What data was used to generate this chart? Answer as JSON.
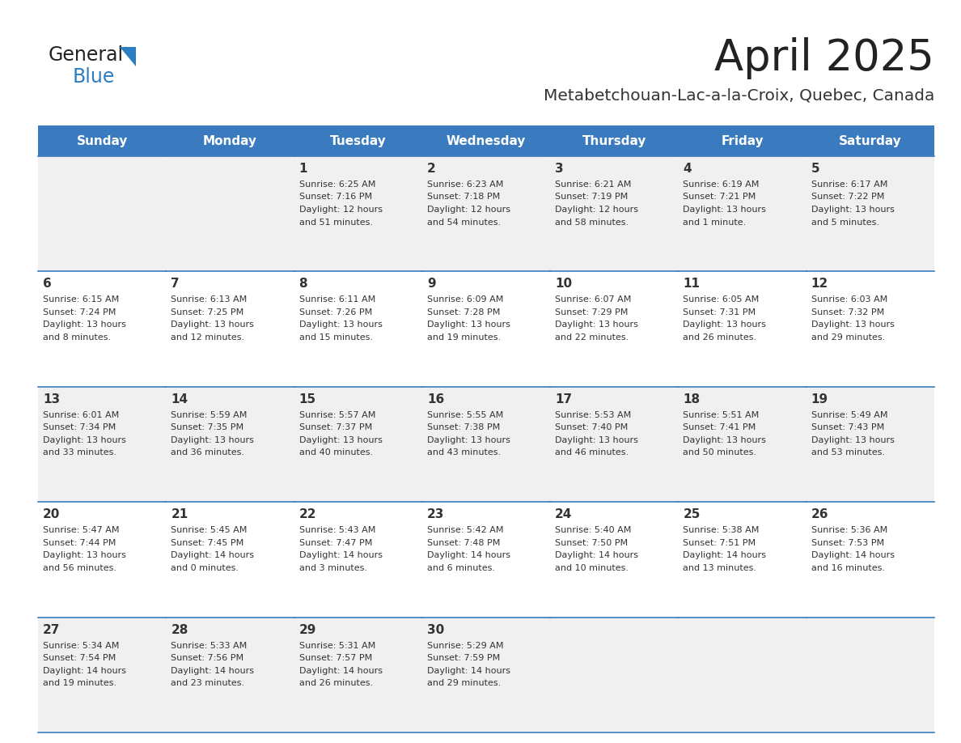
{
  "title": "April 2025",
  "subtitle": "Metabetchouan-Lac-a-la-Croix, Quebec, Canada",
  "header_color": "#3a7bbf",
  "header_text_color": "#ffffff",
  "cell_bg_even": "#f0f0f0",
  "cell_bg_odd": "#ffffff",
  "day_headers": [
    "Sunday",
    "Monday",
    "Tuesday",
    "Wednesday",
    "Thursday",
    "Friday",
    "Saturday"
  ],
  "title_color": "#222222",
  "subtitle_color": "#333333",
  "divider_color": "#3a7bbf",
  "cell_text_color": "#333333",
  "logo_black": "#222222",
  "logo_blue": "#2e7fc2",
  "days": [
    {
      "date": "",
      "sunrise": "",
      "sunset": "",
      "daylight": ""
    },
    {
      "date": "",
      "sunrise": "",
      "sunset": "",
      "daylight": ""
    },
    {
      "date": "1",
      "sunrise": "Sunrise: 6:25 AM",
      "sunset": "Sunset: 7:16 PM",
      "daylight": "Daylight: 12 hours\nand 51 minutes."
    },
    {
      "date": "2",
      "sunrise": "Sunrise: 6:23 AM",
      "sunset": "Sunset: 7:18 PM",
      "daylight": "Daylight: 12 hours\nand 54 minutes."
    },
    {
      "date": "3",
      "sunrise": "Sunrise: 6:21 AM",
      "sunset": "Sunset: 7:19 PM",
      "daylight": "Daylight: 12 hours\nand 58 minutes."
    },
    {
      "date": "4",
      "sunrise": "Sunrise: 6:19 AM",
      "sunset": "Sunset: 7:21 PM",
      "daylight": "Daylight: 13 hours\nand 1 minute."
    },
    {
      "date": "5",
      "sunrise": "Sunrise: 6:17 AM",
      "sunset": "Sunset: 7:22 PM",
      "daylight": "Daylight: 13 hours\nand 5 minutes."
    },
    {
      "date": "6",
      "sunrise": "Sunrise: 6:15 AM",
      "sunset": "Sunset: 7:24 PM",
      "daylight": "Daylight: 13 hours\nand 8 minutes."
    },
    {
      "date": "7",
      "sunrise": "Sunrise: 6:13 AM",
      "sunset": "Sunset: 7:25 PM",
      "daylight": "Daylight: 13 hours\nand 12 minutes."
    },
    {
      "date": "8",
      "sunrise": "Sunrise: 6:11 AM",
      "sunset": "Sunset: 7:26 PM",
      "daylight": "Daylight: 13 hours\nand 15 minutes."
    },
    {
      "date": "9",
      "sunrise": "Sunrise: 6:09 AM",
      "sunset": "Sunset: 7:28 PM",
      "daylight": "Daylight: 13 hours\nand 19 minutes."
    },
    {
      "date": "10",
      "sunrise": "Sunrise: 6:07 AM",
      "sunset": "Sunset: 7:29 PM",
      "daylight": "Daylight: 13 hours\nand 22 minutes."
    },
    {
      "date": "11",
      "sunrise": "Sunrise: 6:05 AM",
      "sunset": "Sunset: 7:31 PM",
      "daylight": "Daylight: 13 hours\nand 26 minutes."
    },
    {
      "date": "12",
      "sunrise": "Sunrise: 6:03 AM",
      "sunset": "Sunset: 7:32 PM",
      "daylight": "Daylight: 13 hours\nand 29 minutes."
    },
    {
      "date": "13",
      "sunrise": "Sunrise: 6:01 AM",
      "sunset": "Sunset: 7:34 PM",
      "daylight": "Daylight: 13 hours\nand 33 minutes."
    },
    {
      "date": "14",
      "sunrise": "Sunrise: 5:59 AM",
      "sunset": "Sunset: 7:35 PM",
      "daylight": "Daylight: 13 hours\nand 36 minutes."
    },
    {
      "date": "15",
      "sunrise": "Sunrise: 5:57 AM",
      "sunset": "Sunset: 7:37 PM",
      "daylight": "Daylight: 13 hours\nand 40 minutes."
    },
    {
      "date": "16",
      "sunrise": "Sunrise: 5:55 AM",
      "sunset": "Sunset: 7:38 PM",
      "daylight": "Daylight: 13 hours\nand 43 minutes."
    },
    {
      "date": "17",
      "sunrise": "Sunrise: 5:53 AM",
      "sunset": "Sunset: 7:40 PM",
      "daylight": "Daylight: 13 hours\nand 46 minutes."
    },
    {
      "date": "18",
      "sunrise": "Sunrise: 5:51 AM",
      "sunset": "Sunset: 7:41 PM",
      "daylight": "Daylight: 13 hours\nand 50 minutes."
    },
    {
      "date": "19",
      "sunrise": "Sunrise: 5:49 AM",
      "sunset": "Sunset: 7:43 PM",
      "daylight": "Daylight: 13 hours\nand 53 minutes."
    },
    {
      "date": "20",
      "sunrise": "Sunrise: 5:47 AM",
      "sunset": "Sunset: 7:44 PM",
      "daylight": "Daylight: 13 hours\nand 56 minutes."
    },
    {
      "date": "21",
      "sunrise": "Sunrise: 5:45 AM",
      "sunset": "Sunset: 7:45 PM",
      "daylight": "Daylight: 14 hours\nand 0 minutes."
    },
    {
      "date": "22",
      "sunrise": "Sunrise: 5:43 AM",
      "sunset": "Sunset: 7:47 PM",
      "daylight": "Daylight: 14 hours\nand 3 minutes."
    },
    {
      "date": "23",
      "sunrise": "Sunrise: 5:42 AM",
      "sunset": "Sunset: 7:48 PM",
      "daylight": "Daylight: 14 hours\nand 6 minutes."
    },
    {
      "date": "24",
      "sunrise": "Sunrise: 5:40 AM",
      "sunset": "Sunset: 7:50 PM",
      "daylight": "Daylight: 14 hours\nand 10 minutes."
    },
    {
      "date": "25",
      "sunrise": "Sunrise: 5:38 AM",
      "sunset": "Sunset: 7:51 PM",
      "daylight": "Daylight: 14 hours\nand 13 minutes."
    },
    {
      "date": "26",
      "sunrise": "Sunrise: 5:36 AM",
      "sunset": "Sunset: 7:53 PM",
      "daylight": "Daylight: 14 hours\nand 16 minutes."
    },
    {
      "date": "27",
      "sunrise": "Sunrise: 5:34 AM",
      "sunset": "Sunset: 7:54 PM",
      "daylight": "Daylight: 14 hours\nand 19 minutes."
    },
    {
      "date": "28",
      "sunrise": "Sunrise: 5:33 AM",
      "sunset": "Sunset: 7:56 PM",
      "daylight": "Daylight: 14 hours\nand 23 minutes."
    },
    {
      "date": "29",
      "sunrise": "Sunrise: 5:31 AM",
      "sunset": "Sunset: 7:57 PM",
      "daylight": "Daylight: 14 hours\nand 26 minutes."
    },
    {
      "date": "30",
      "sunrise": "Sunrise: 5:29 AM",
      "sunset": "Sunset: 7:59 PM",
      "daylight": "Daylight: 14 hours\nand 29 minutes."
    },
    {
      "date": "",
      "sunrise": "",
      "sunset": "",
      "daylight": ""
    },
    {
      "date": "",
      "sunrise": "",
      "sunset": "",
      "daylight": ""
    },
    {
      "date": "",
      "sunrise": "",
      "sunset": "",
      "daylight": ""
    }
  ]
}
